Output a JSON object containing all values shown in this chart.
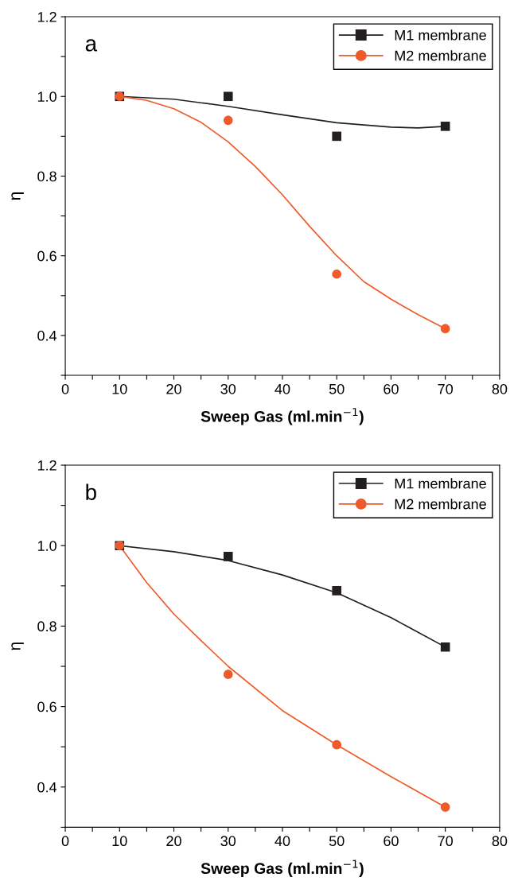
{
  "chart_data": [
    {
      "type": "scatter",
      "xlabel": "Sweep Gas (ml.min$^{−1}$)",
      "ylabel": "η",
      "annotations": [
        "a"
      ],
      "xlim": [
        0,
        80
      ],
      "ylim": [
        0.3,
        1.2
      ],
      "xticks": [
        0,
        {
          "value": 5,
          "label": null
        },
        10,
        {
          "value": 15,
          "label": null
        },
        20,
        {
          "value": 25,
          "label": null
        },
        30,
        {
          "value": 35,
          "label": null
        },
        40,
        {
          "value": 45,
          "label": null
        },
        50,
        {
          "value": 55,
          "label": null
        },
        60,
        {
          "value": 65,
          "label": null
        },
        70,
        {
          "value": 75,
          "label": null
        },
        80
      ],
      "yticks": [
        {
          "value": 0.3,
          "label": null
        },
        {
          "value": 0.4,
          "label": "0.4"
        },
        {
          "value": 0.5,
          "label": null
        },
        {
          "value": 0.6,
          "label": "0.6"
        },
        {
          "value": 0.7,
          "label": null
        },
        {
          "value": 0.8,
          "label": "0.8"
        },
        {
          "value": 0.9,
          "label": null
        },
        {
          "value": 1.0,
          "label": "1.0"
        },
        {
          "value": 1.1,
          "label": null
        },
        {
          "value": 1.2,
          "label": "1.2"
        }
      ],
      "grid": false,
      "legend": "top right",
      "series": [
        {
          "type": "line",
          "color": "#231f20",
          "marker": "none",
          "x": [
            10,
            20,
            30,
            40,
            50,
            60,
            65,
            70
          ],
          "values": [
            1.0,
            0.993,
            0.975,
            0.954,
            0.934,
            0.923,
            0.921,
            0.925
          ]
        },
        {
          "type": "line",
          "color": "#ee5a2a",
          "marker": "none",
          "x": [
            10,
            15,
            20,
            25,
            30,
            35,
            40,
            45,
            50,
            55,
            60,
            65,
            70
          ],
          "values": [
            1.0,
            0.99,
            0.969,
            0.935,
            0.886,
            0.824,
            0.753,
            0.674,
            0.6,
            0.535,
            0.491,
            0.452,
            0.417
          ]
        },
        {
          "name": "M1 membrane",
          "color": "#231f20",
          "marker": "square",
          "x": [
            10,
            30,
            50,
            70
          ],
          "values": [
            1.0,
            1.0,
            0.9,
            0.925
          ]
        },
        {
          "name": "M2 membrane",
          "color": "#ee5a2a",
          "marker": "circle",
          "x": [
            10,
            30,
            50,
            70
          ],
          "values": [
            1.0,
            0.94,
            0.554,
            0.417
          ]
        }
      ]
    },
    {
      "type": "scatter",
      "xlabel": "Sweep Gas (ml.min$^{−1}$)",
      "ylabel": "η",
      "annotations": [
        "b"
      ],
      "xlim": [
        0,
        80
      ],
      "ylim": [
        0.3,
        1.2
      ],
      "xticks": [
        0,
        {
          "value": 5,
          "label": null
        },
        10,
        {
          "value": 15,
          "label": null
        },
        20,
        {
          "value": 25,
          "label": null
        },
        30,
        {
          "value": 35,
          "label": null
        },
        40,
        {
          "value": 45,
          "label": null
        },
        50,
        {
          "value": 55,
          "label": null
        },
        60,
        {
          "value": 65,
          "label": null
        },
        70,
        {
          "value": 75,
          "label": null
        },
        80
      ],
      "yticks": [
        {
          "value": 0.3,
          "label": null
        },
        {
          "value": 0.4,
          "label": "0.4"
        },
        {
          "value": 0.5,
          "label": null
        },
        {
          "value": 0.6,
          "label": "0.6"
        },
        {
          "value": 0.7,
          "label": null
        },
        {
          "value": 0.8,
          "label": "0.8"
        },
        {
          "value": 0.9,
          "label": null
        },
        {
          "value": 1.0,
          "label": "1.0"
        },
        {
          "value": 1.1,
          "label": null
        },
        {
          "value": 1.2,
          "label": "1.2"
        }
      ],
      "grid": false,
      "legend": "top right",
      "series": [
        {
          "type": "line",
          "color": "#231f20",
          "marker": "none",
          "x": [
            10,
            20,
            30,
            40,
            50,
            60,
            70
          ],
          "values": [
            1.0,
            0.985,
            0.963,
            0.927,
            0.883,
            0.821,
            0.748
          ]
        },
        {
          "type": "line",
          "color": "#ee5a2a",
          "marker": "none",
          "x": [
            10,
            15,
            20,
            25,
            30,
            40,
            50,
            60,
            70
          ],
          "values": [
            1.0,
            0.908,
            0.83,
            0.764,
            0.7,
            0.59,
            0.505,
            0.426,
            0.35
          ]
        },
        {
          "name": "M1 membrane",
          "color": "#231f20",
          "marker": "square",
          "x": [
            10,
            30,
            50,
            70
          ],
          "values": [
            1.0,
            0.973,
            0.888,
            0.748
          ]
        },
        {
          "name": "M2 membrane",
          "color": "#ee5a2a",
          "marker": "circle",
          "x": [
            10,
            30,
            50,
            70
          ],
          "values": [
            1.0,
            0.68,
            0.505,
            0.35
          ]
        }
      ]
    }
  ]
}
